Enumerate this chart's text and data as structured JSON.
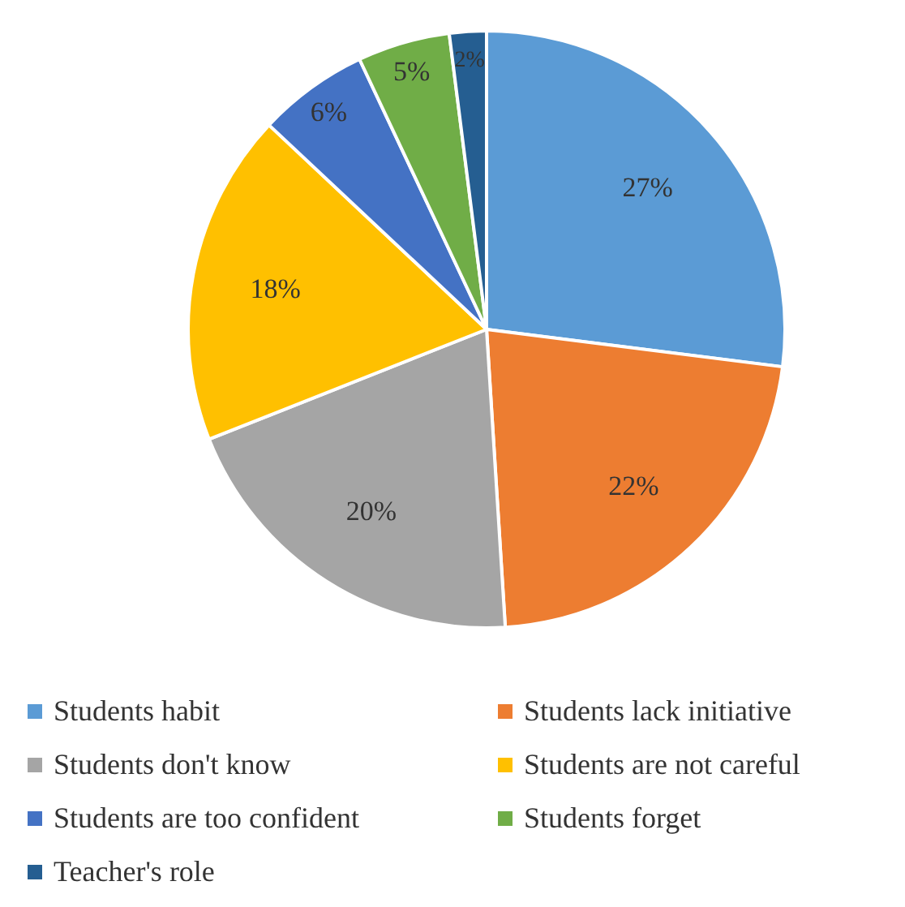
{
  "chart_data": {
    "type": "pie",
    "categories": [
      "Students habit",
      "Students lack initiative",
      "Students don't know",
      "Students are not careful",
      "Students are too confident",
      "Students forget",
      "Teacher's role"
    ],
    "values": [
      27,
      22,
      20,
      18,
      6,
      5,
      2
    ],
    "value_labels": [
      "27%",
      "22%",
      "20%",
      "18%",
      "6%",
      "5%",
      "2%"
    ],
    "colors": [
      "#5b9bd5",
      "#ed7d31",
      "#a5a5a5",
      "#ffc000",
      "#4472c4",
      "#70ad47",
      "#255e91"
    ],
    "legend": "bottom"
  }
}
